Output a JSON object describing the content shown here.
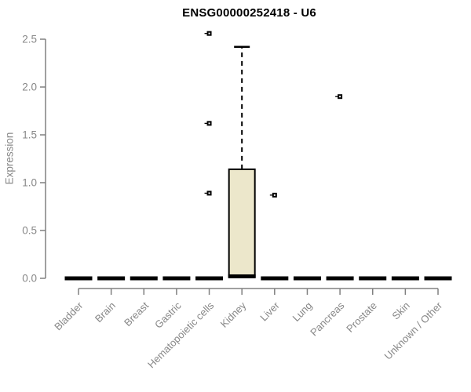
{
  "chart": {
    "title": "ENSG00000252418 - U6",
    "ylabel": "Expression"
  },
  "chart_data": {
    "type": "boxplot",
    "title": "ENSG00000252418 - U6",
    "xlabel": "",
    "ylabel": "Expression",
    "ylim": [
      0,
      2.5
    ],
    "yticks": [
      0.0,
      0.5,
      1.0,
      1.5,
      2.0,
      2.5
    ],
    "grid": false,
    "legend": "none",
    "categories": [
      "Bladder",
      "Brain",
      "Breast",
      "Gastric",
      "Hematopoietic cells",
      "Kidney",
      "Liver",
      "Lung",
      "Pancreas",
      "Prostate",
      "Skin",
      "Unknown / Other"
    ],
    "series": [
      {
        "category": "Bladder",
        "low": 0,
        "q1": 0,
        "median": 0,
        "q3": 0,
        "high": 0,
        "outliers": []
      },
      {
        "category": "Brain",
        "low": 0,
        "q1": 0,
        "median": 0,
        "q3": 0,
        "high": 0,
        "outliers": []
      },
      {
        "category": "Breast",
        "low": 0,
        "q1": 0,
        "median": 0,
        "q3": 0,
        "high": 0,
        "outliers": []
      },
      {
        "category": "Gastric",
        "low": 0,
        "q1": 0,
        "median": 0,
        "q3": 0,
        "high": 0,
        "outliers": []
      },
      {
        "category": "Hematopoietic cells",
        "low": 0,
        "q1": 0,
        "median": 0,
        "q3": 0,
        "high": 0,
        "outliers": [
          0.89,
          1.62,
          2.56
        ]
      },
      {
        "category": "Kidney",
        "low": 0.02,
        "q1": 0.02,
        "median": 0.02,
        "q3": 1.14,
        "high": 2.42,
        "outliers": []
      },
      {
        "category": "Liver",
        "low": 0,
        "q1": 0,
        "median": 0,
        "q3": 0,
        "high": 0,
        "outliers": [
          0.87
        ]
      },
      {
        "category": "Lung",
        "low": 0,
        "q1": 0,
        "median": 0,
        "q3": 0,
        "high": 0,
        "outliers": []
      },
      {
        "category": "Pancreas",
        "low": 0,
        "q1": 0,
        "median": 0,
        "q3": 0,
        "high": 0,
        "outliers": [
          1.9
        ]
      },
      {
        "category": "Prostate",
        "low": 0,
        "q1": 0,
        "median": 0,
        "q3": 0,
        "high": 0,
        "outliers": []
      },
      {
        "category": "Skin",
        "low": 0,
        "q1": 0,
        "median": 0,
        "q3": 0,
        "high": 0,
        "outliers": []
      },
      {
        "category": "Unknown / Other",
        "low": 0,
        "q1": 0,
        "median": 0,
        "q3": 0,
        "high": 0,
        "outliers": []
      }
    ],
    "colors": {
      "box_fill": "#ece7cb",
      "box_stroke": "#000000",
      "median": "#000000",
      "whisker": "#000000",
      "outlier": "#000000",
      "axis_line": "#808080",
      "axis_text": "#878787",
      "title_text": "#000000",
      "background": "#ffffff"
    }
  }
}
